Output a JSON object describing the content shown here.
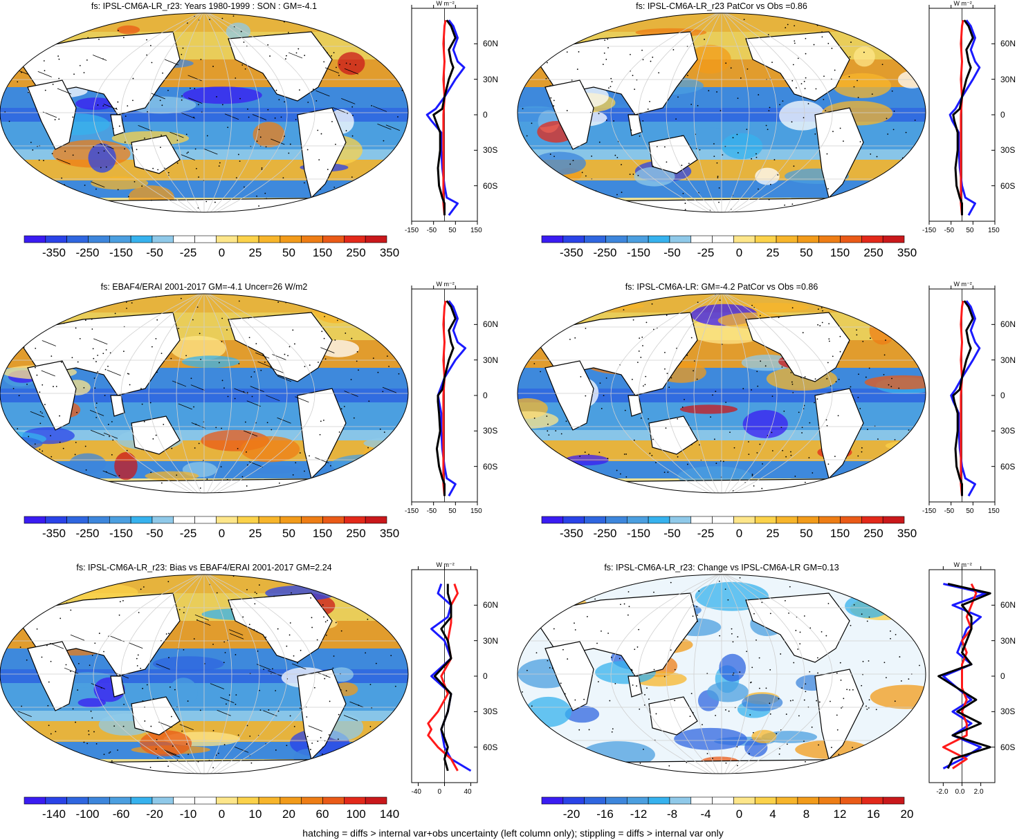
{
  "panels": [
    {
      "id": "p1",
      "title": "fs: IPSL-CM6A-LR_r23: Years 1980-1999 : SON : GM=-4.1",
      "colorbar": [
        "-350",
        "-250",
        "-150",
        "-50",
        "-25",
        "0",
        "25",
        "50",
        "150",
        "250",
        "350"
      ],
      "profile_xticks": [
        "-150",
        "-50",
        "50",
        "150"
      ],
      "profile_unit": "W m⁻²",
      "lat_labels": [
        "60N",
        "30N",
        "0",
        "30S",
        "60S"
      ]
    },
    {
      "id": "p2",
      "title": "fs: IPSL-CM6A-LR_r23 PatCor vs Obs =0.86",
      "colorbar": [
        "-350",
        "-250",
        "-150",
        "-50",
        "-25",
        "0",
        "25",
        "50",
        "150",
        "250",
        "350"
      ],
      "profile_xticks": [
        "-150",
        "-50",
        "50",
        "150"
      ],
      "profile_unit": "W m⁻²",
      "lat_labels": [
        "60N",
        "30N",
        "0",
        "30S",
        "60S"
      ]
    },
    {
      "id": "p3",
      "title": "fs: EBAF4/ERAI 2001-2017 GM=-4.1 Uncer=26 W/m2",
      "colorbar": [
        "-350",
        "-250",
        "-150",
        "-50",
        "-25",
        "0",
        "25",
        "50",
        "150",
        "250",
        "350"
      ],
      "profile_xticks": [
        "-150",
        "-50",
        "50",
        "150"
      ],
      "profile_unit": "W m⁻²",
      "lat_labels": [
        "60N",
        "30N",
        "0",
        "30S",
        "60S"
      ]
    },
    {
      "id": "p4",
      "title": "fs: IPSL-CM6A-LR: GM=-4.2 PatCor vs Obs =0.86",
      "colorbar": [
        "-350",
        "-250",
        "-150",
        "-50",
        "-25",
        "0",
        "25",
        "50",
        "150",
        "250",
        "350"
      ],
      "profile_xticks": [
        "-150",
        "-50",
        "50",
        "150"
      ],
      "profile_unit": "W m⁻²",
      "lat_labels": [
        "60N",
        "30N",
        "0",
        "30S",
        "60S"
      ]
    },
    {
      "id": "p5",
      "title": "fs: IPSL-CM6A-LR_r23: Bias vs EBAF4/ERAI 2001-2017  GM=2.24",
      "colorbar": [
        "-140",
        "-100",
        "-60",
        "-20",
        "-10",
        "0",
        "10",
        "20",
        "60",
        "100",
        "140"
      ],
      "profile_xticks": [
        "-40",
        "0",
        "40"
      ],
      "profile_unit": "W m⁻²",
      "lat_labels": [
        "60N",
        "30N",
        "0",
        "30S",
        "60S"
      ]
    },
    {
      "id": "p6",
      "title": "fs: IPSL-CM6A-LR_r23: Change vs IPSL-CM6A-LR GM=0.13",
      "colorbar": [
        "-20",
        "-16",
        "-12",
        "-8",
        "-4",
        "0",
        "4",
        "8",
        "12",
        "16",
        "20"
      ],
      "profile_xticks": [
        "-2.0",
        "0.0",
        "2.0"
      ],
      "profile_unit": "W m⁻²",
      "lat_labels": [
        "60N",
        "30N",
        "0",
        "30S",
        "60S"
      ]
    }
  ],
  "colors": {
    "palette": [
      "#3a1cf2",
      "#2a43e8",
      "#2f66e0",
      "#3d86dc",
      "#4b9fe0",
      "#36b2ee",
      "#8fc9e9",
      "#ffffff",
      "#ffffff",
      "#fde68a",
      "#fbd24a",
      "#f7b52b",
      "#f29b1a",
      "#ee7d15",
      "#ea5a17",
      "#e3291a",
      "#c9181b"
    ],
    "land": "#ffffff",
    "blue_line": "#1a1aff",
    "red_line": "#ff1a1a",
    "black_line": "#000000"
  },
  "footer": "hatching = diffs > internal var+obs uncertainty (left column only); stippling = diffs > internal var only",
  "chart_data": [
    {
      "type": "heatmap",
      "title": "fs: IPSL-CM6A-LR_r23: Years 1980-1999 : SON : GM=-4.1",
      "colorbar_ticks": [
        -350,
        -250,
        -150,
        -50,
        -25,
        0,
        25,
        50,
        150,
        250,
        350
      ],
      "global_mean": -4.1
    },
    {
      "type": "heatmap",
      "title": "fs: IPSL-CM6A-LR_r23 PatCor vs Obs =0.86",
      "colorbar_ticks": [
        -350,
        -250,
        -150,
        -50,
        -25,
        0,
        25,
        50,
        150,
        250,
        350
      ],
      "pattern_correlation": 0.86
    },
    {
      "type": "heatmap",
      "title": "fs: EBAF4/ERAI 2001-2017 GM=-4.1 Uncer=26 W/m2",
      "colorbar_ticks": [
        -350,
        -250,
        -150,
        -50,
        -25,
        0,
        25,
        50,
        150,
        250,
        350
      ],
      "global_mean": -4.1,
      "uncertainty": 26
    },
    {
      "type": "heatmap",
      "title": "fs: IPSL-CM6A-LR: GM=-4.2 PatCor vs Obs =0.86",
      "colorbar_ticks": [
        -350,
        -250,
        -150,
        -50,
        -25,
        0,
        25,
        50,
        150,
        250,
        350
      ],
      "global_mean": -4.2,
      "pattern_correlation": 0.86
    },
    {
      "type": "heatmap",
      "title": "fs: IPSL-CM6A-LR_r23: Bias vs EBAF4/ERAI 2001-2017  GM=2.24",
      "colorbar_ticks": [
        -140,
        -100,
        -60,
        -20,
        -10,
        0,
        10,
        20,
        60,
        100,
        140
      ],
      "global_mean": 2.24
    },
    {
      "type": "heatmap",
      "title": "fs: IPSL-CM6A-LR_r23: Change vs IPSL-CM6A-LR GM=0.13",
      "colorbar_ticks": [
        -20,
        -16,
        -12,
        -8,
        -4,
        0,
        4,
        8,
        12,
        16,
        20
      ],
      "global_mean": 0.13
    },
    {
      "type": "line",
      "title": "",
      "xlim": [
        -150,
        150
      ],
      "ylim": [
        -90,
        90
      ],
      "x_ticks": [
        -150,
        -50,
        50,
        150
      ],
      "y_ticks": [
        60,
        30,
        0,
        -30,
        -60
      ],
      "series": [
        {
          "color": "#1a1aff",
          "lat": [
            -85,
            -75,
            -70,
            -60,
            -45,
            -30,
            -15,
            -5,
            0,
            5,
            15,
            30,
            40,
            45,
            55,
            65,
            75,
            80
          ],
          "values": [
            20,
            60,
            10,
            0,
            -10,
            -15,
            -15,
            -60,
            -80,
            -40,
            0,
            50,
            90,
            60,
            40,
            60,
            40,
            20
          ]
        },
        {
          "color": "#ff1a1a",
          "lat": [
            -85,
            -75,
            -60,
            -45,
            -30,
            -15,
            0,
            15,
            30,
            45,
            60,
            75,
            80
          ],
          "values": [
            0,
            -5,
            -5,
            -5,
            -5,
            -5,
            -5,
            0,
            -5,
            0,
            -5,
            0,
            5
          ]
        },
        {
          "color": "#000000",
          "lat": [
            -85,
            -75,
            -70,
            -60,
            -45,
            -30,
            -15,
            -5,
            0,
            5,
            15,
            30,
            40,
            45,
            55,
            65,
            75,
            80
          ],
          "values": [
            0,
            0,
            -10,
            -25,
            -30,
            -20,
            -20,
            -40,
            -50,
            -10,
            0,
            20,
            40,
            30,
            20,
            50,
            30,
            10
          ]
        }
      ]
    },
    {
      "type": "line",
      "title": "",
      "xlim": [
        -150,
        150
      ],
      "ylim": [
        -90,
        90
      ],
      "x_ticks": [
        -150,
        -50,
        50,
        150
      ],
      "y_ticks": [
        60,
        30,
        0,
        -30,
        -60
      ],
      "series": [
        {
          "color": "#1a1aff",
          "lat": [
            -85,
            -75,
            -70,
            -60,
            -45,
            -30,
            -15,
            -5,
            0,
            5,
            15,
            30,
            40,
            45,
            55,
            65,
            75,
            80
          ],
          "values": [
            30,
            60,
            15,
            0,
            -10,
            -15,
            -15,
            -45,
            -55,
            -30,
            0,
            50,
            80,
            60,
            40,
            60,
            40,
            20
          ]
        },
        {
          "color": "#ff1a1a",
          "lat": [
            -85,
            -75,
            -60,
            -45,
            -30,
            -15,
            0,
            15,
            30,
            45,
            60,
            75,
            80
          ],
          "values": [
            0,
            -5,
            -5,
            -5,
            -5,
            -5,
            -5,
            0,
            -5,
            0,
            -5,
            0,
            5
          ]
        },
        {
          "color": "#000000",
          "lat": [
            -85,
            -75,
            -70,
            -60,
            -45,
            -30,
            -15,
            -5,
            0,
            5,
            15,
            30,
            40,
            45,
            55,
            65,
            75,
            80
          ],
          "values": [
            0,
            0,
            -10,
            -25,
            -30,
            -20,
            -20,
            -35,
            -40,
            -10,
            0,
            20,
            40,
            30,
            20,
            50,
            30,
            10
          ]
        }
      ]
    },
    {
      "type": "line",
      "title": "",
      "xlim": [
        -150,
        150
      ],
      "ylim": [
        -90,
        90
      ],
      "x_ticks": [
        -150,
        -50,
        50,
        150
      ],
      "y_ticks": [
        60,
        30,
        0,
        -30,
        -60
      ],
      "series": [
        {
          "color": "#1a1aff",
          "lat": [
            -85,
            -75,
            -70,
            -60,
            -45,
            -30,
            -15,
            -5,
            0,
            5,
            15,
            30,
            40,
            45,
            55,
            65,
            75,
            80
          ],
          "values": [
            20,
            50,
            10,
            0,
            -10,
            -15,
            -15,
            -25,
            -30,
            -20,
            0,
            50,
            95,
            60,
            40,
            60,
            40,
            20
          ]
        },
        {
          "color": "#ff1a1a",
          "lat": [
            -85,
            -75,
            -60,
            -45,
            -30,
            -15,
            0,
            15,
            30,
            45,
            60,
            75,
            80
          ],
          "values": [
            0,
            -5,
            -5,
            -5,
            -5,
            -5,
            -5,
            0,
            -5,
            0,
            -5,
            0,
            5
          ]
        },
        {
          "color": "#000000",
          "lat": [
            -85,
            -75,
            -70,
            -60,
            -45,
            -30,
            -15,
            -5,
            0,
            5,
            15,
            30,
            40,
            45,
            55,
            65,
            75,
            80
          ],
          "values": [
            0,
            0,
            -10,
            -25,
            -35,
            -20,
            -25,
            -30,
            -30,
            -10,
            0,
            20,
            40,
            30,
            20,
            50,
            30,
            10
          ]
        }
      ]
    },
    {
      "type": "line",
      "title": "",
      "xlim": [
        -150,
        150
      ],
      "ylim": [
        -90,
        90
      ],
      "x_ticks": [
        -150,
        -50,
        50,
        150
      ],
      "y_ticks": [
        60,
        30,
        0,
        -30,
        -60
      ],
      "series": [
        {
          "color": "#1a1aff",
          "lat": [
            -85,
            -75,
            -70,
            -60,
            -45,
            -30,
            -15,
            -5,
            0,
            5,
            15,
            30,
            40,
            45,
            55,
            65,
            75,
            80
          ],
          "values": [
            30,
            60,
            15,
            0,
            -10,
            -15,
            -15,
            -40,
            -50,
            -30,
            0,
            50,
            80,
            60,
            40,
            60,
            40,
            20
          ]
        },
        {
          "color": "#ff1a1a",
          "lat": [
            -85,
            -75,
            -60,
            -45,
            -30,
            -15,
            0,
            15,
            30,
            45,
            60,
            75,
            80
          ],
          "values": [
            0,
            -5,
            -5,
            -5,
            -5,
            -5,
            -5,
            0,
            -5,
            0,
            -5,
            0,
            5
          ]
        },
        {
          "color": "#000000",
          "lat": [
            -85,
            -75,
            -70,
            -60,
            -45,
            -30,
            -15,
            -5,
            0,
            5,
            15,
            30,
            40,
            45,
            55,
            65,
            75,
            80
          ],
          "values": [
            0,
            0,
            -10,
            -25,
            -30,
            -20,
            -20,
            -35,
            -40,
            -10,
            0,
            20,
            40,
            30,
            20,
            50,
            30,
            10
          ]
        }
      ]
    },
    {
      "type": "line",
      "title": "",
      "xlim": [
        -50,
        50
      ],
      "ylim": [
        -90,
        90
      ],
      "x_ticks": [
        -40,
        0,
        40
      ],
      "y_ticks": [
        60,
        30,
        0,
        -30,
        -60
      ],
      "series": [
        {
          "color": "#1a1aff",
          "lat": [
            -80,
            -70,
            -60,
            -45,
            -30,
            -15,
            0,
            15,
            30,
            40,
            50,
            60,
            70,
            78
          ],
          "values": [
            40,
            10,
            0,
            -5,
            5,
            10,
            -20,
            10,
            0,
            -20,
            5,
            10,
            -10,
            -5
          ]
        },
        {
          "color": "#ff1a1a",
          "lat": [
            -80,
            -70,
            -60,
            -50,
            -45,
            -40,
            -30,
            -15,
            0,
            15,
            30,
            45,
            60,
            70,
            78
          ],
          "values": [
            20,
            10,
            -10,
            -25,
            -20,
            -25,
            -10,
            5,
            -5,
            10,
            5,
            10,
            10,
            20,
            15
          ]
        },
        {
          "color": "#000000",
          "lat": [
            -80,
            -70,
            -60,
            -45,
            -30,
            -15,
            0,
            15,
            30,
            40,
            50,
            60,
            70,
            78
          ],
          "values": [
            5,
            0,
            5,
            -5,
            5,
            10,
            -15,
            10,
            5,
            -5,
            10,
            10,
            5,
            5
          ]
        }
      ]
    },
    {
      "type": "line",
      "title": "",
      "xlim": [
        -3.5,
        3.5
      ],
      "ylim": [
        -90,
        90
      ],
      "x_ticks": [
        -2.0,
        0.0,
        2.0
      ],
      "y_ticks": [
        60,
        30,
        0,
        -30,
        -60
      ],
      "series": [
        {
          "color": "#1a1aff",
          "lat": [
            -78,
            -70,
            -60,
            -50,
            -40,
            -30,
            -20,
            -10,
            0,
            10,
            20,
            30,
            40,
            50,
            60,
            70,
            78
          ],
          "values": [
            -2,
            0,
            2,
            -1,
            1,
            -1,
            1,
            -0.5,
            -2,
            1,
            -0.5,
            0,
            0.5,
            2,
            -1,
            2.5,
            -2
          ]
        },
        {
          "color": "#ff1a1a",
          "lat": [
            -78,
            -70,
            -60,
            -50,
            -40,
            -30,
            -20,
            -10,
            0,
            10,
            20,
            30,
            40,
            50,
            60,
            70,
            78
          ],
          "values": [
            -1,
            0.5,
            -2,
            0.5,
            0.5,
            0,
            0.5,
            0,
            0,
            0,
            0.5,
            0,
            1,
            0.5,
            1,
            1.5,
            1
          ]
        },
        {
          "color": "#000000",
          "lat": [
            -78,
            -70,
            -60,
            -50,
            -40,
            -30,
            -20,
            -10,
            0,
            10,
            20,
            30,
            40,
            50,
            60,
            70,
            78
          ],
          "values": [
            -1.5,
            -1,
            3,
            -1,
            2,
            -0.5,
            1.5,
            -0.5,
            -2.5,
            1,
            0,
            0.5,
            1,
            1,
            0,
            3,
            -1.5
          ]
        }
      ]
    }
  ]
}
